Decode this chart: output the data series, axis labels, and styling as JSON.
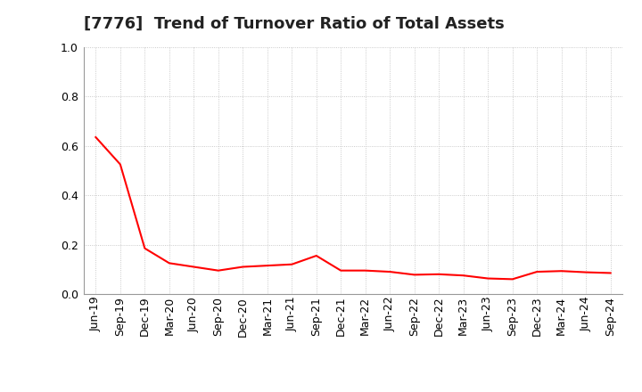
{
  "title": "[7776]  Trend of Turnover Ratio of Total Assets",
  "line_color": "#FF0000",
  "background_color": "#FFFFFF",
  "grid_color": "#BBBBBB",
  "ylim": [
    0.0,
    1.0
  ],
  "yticks": [
    0.0,
    0.2,
    0.4,
    0.6,
    0.8,
    1.0
  ],
  "labels": [
    "Jun-19",
    "Sep-19",
    "Dec-19",
    "Mar-20",
    "Jun-20",
    "Sep-20",
    "Dec-20",
    "Mar-21",
    "Jun-21",
    "Sep-21",
    "Dec-21",
    "Mar-22",
    "Jun-22",
    "Sep-22",
    "Dec-22",
    "Mar-23",
    "Jun-23",
    "Sep-23",
    "Dec-23",
    "Mar-24",
    "Jun-24",
    "Sep-24"
  ],
  "values": [
    0.635,
    0.525,
    0.185,
    0.125,
    0.11,
    0.095,
    0.11,
    0.115,
    0.12,
    0.155,
    0.095,
    0.095,
    0.09,
    0.078,
    0.08,
    0.075,
    0.063,
    0.06,
    0.09,
    0.093,
    0.088,
    0.085
  ],
  "title_fontsize": 13,
  "tick_fontsize": 9,
  "ytick_fontsize": 9
}
